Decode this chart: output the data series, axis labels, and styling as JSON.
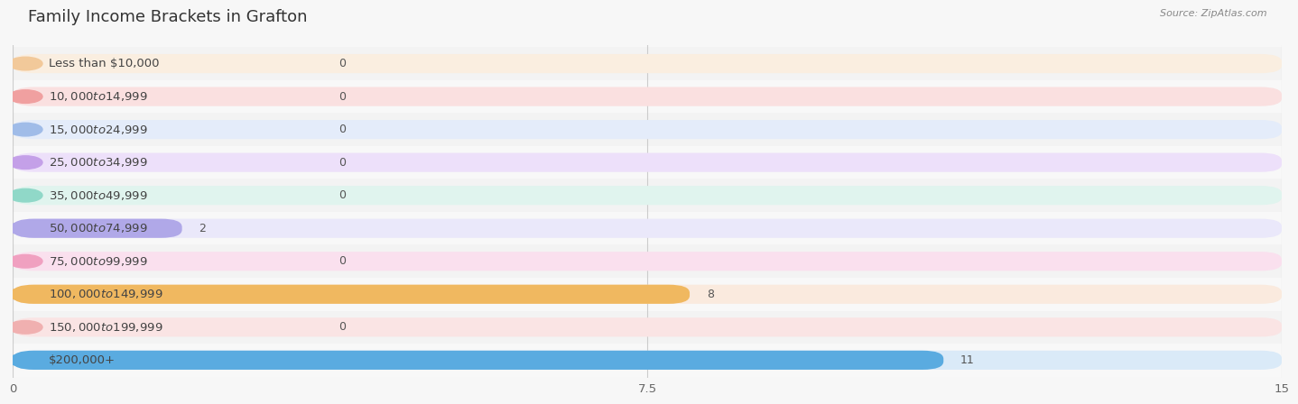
{
  "title": "Family Income Brackets in Grafton",
  "source": "Source: ZipAtlas.com",
  "categories": [
    "Less than $10,000",
    "$10,000 to $14,999",
    "$15,000 to $24,999",
    "$25,000 to $34,999",
    "$35,000 to $49,999",
    "$50,000 to $74,999",
    "$75,000 to $99,999",
    "$100,000 to $149,999",
    "$150,000 to $199,999",
    "$200,000+"
  ],
  "values": [
    0,
    0,
    0,
    0,
    0,
    2,
    0,
    8,
    0,
    11
  ],
  "bar_colors": [
    "#f2c99a",
    "#f0a0a0",
    "#a0bce8",
    "#c4a0e8",
    "#90d8c8",
    "#b0a8e8",
    "#f0a0c0",
    "#f0b860",
    "#f0b0b0",
    "#5aabe0"
  ],
  "bar_bg_colors": [
    "#faeee0",
    "#fae0e0",
    "#e4ecfa",
    "#ede0fa",
    "#e0f4ee",
    "#eae8fa",
    "#fae0ee",
    "#faeade",
    "#fae4e4",
    "#daeaf8"
  ],
  "dot_colors": [
    "#f2c99a",
    "#f0a0a0",
    "#a0bce8",
    "#c4a0e8",
    "#90d8c8",
    "#b0a8e8",
    "#f0a0c0",
    "#f0b860",
    "#f0b0b0",
    "#5aabe0"
  ],
  "xlim": [
    0,
    15
  ],
  "xticks": [
    0,
    7.5,
    15
  ],
  "background_color": "#f7f7f7",
  "row_bg_even": "#f0f0f0",
  "row_bg_odd": "#fafafa",
  "title_fontsize": 13,
  "label_fontsize": 9.5,
  "value_fontsize": 9,
  "bar_height": 0.58,
  "figsize": [
    14.06,
    4.5
  ]
}
